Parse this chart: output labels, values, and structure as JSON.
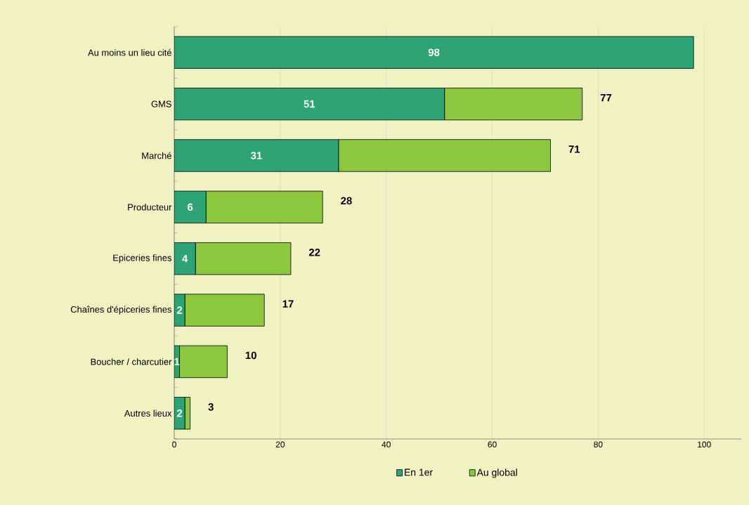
{
  "chart_data": {
    "type": "bar",
    "orientation": "horizontal",
    "stacked": true,
    "categories": [
      "Au moins un lieu cité",
      "GMS",
      "Marché",
      "Producteur",
      "Epiceries fines",
      "Chaînes d'épiceries fines",
      "Boucher / charcutier",
      "Autres lieux"
    ],
    "series": [
      {
        "name": "En 1er",
        "color": "#2ea476",
        "values": [
          98,
          51,
          31,
          6,
          4,
          2,
          1,
          2
        ],
        "value_labels": [
          "98",
          "51",
          "31",
          "6",
          "4",
          "2",
          "1",
          "2"
        ]
      },
      {
        "name": "Au global",
        "color": "#8dc63f",
        "values": [
          0,
          26,
          40,
          22,
          18,
          15,
          9,
          1
        ]
      }
    ],
    "totals": [
      null,
      "77",
      "71",
      "28",
      "22",
      "17",
      "10",
      "3"
    ],
    "xlim": [
      0,
      107
    ],
    "xticks": [
      0,
      20,
      40,
      60,
      80,
      100
    ],
    "grid": "x",
    "legend": "bottom"
  }
}
